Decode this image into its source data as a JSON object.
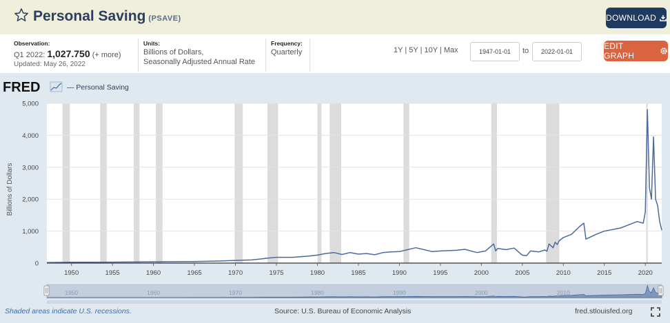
{
  "header": {
    "title": "Personal Saving",
    "series_id": "(PSAVE)",
    "download_label": "DOWNLOAD"
  },
  "meta": {
    "observation_label": "Observation:",
    "observation_period": "Q1 2022:",
    "observation_value": "1,027.750",
    "observation_more": "(+ more)",
    "updated": "Updated: May 26, 2022",
    "units_label": "Units:",
    "units_line1": "Billions of Dollars,",
    "units_line2": "Seasonally Adjusted Annual Rate",
    "frequency_label": "Frequency:",
    "frequency_value": "Quarterly"
  },
  "controls": {
    "range_1y": "1Y",
    "range_5y": "5Y",
    "range_10y": "10Y",
    "range_max": "Max",
    "start_date": "1947-01-01",
    "to_label": "to",
    "end_date": "2022-01-01",
    "edit_label": "EDIT GRAPH"
  },
  "brand": {
    "logo": "FRED",
    "legend_label": "— Personal Saving"
  },
  "footer": {
    "recessions_note": "Shaded areas indicate U.S. recessions.",
    "source": "Source: U.S. Bureau of Economic Analysis",
    "site": "fred.stlouisfed.org"
  },
  "colors": {
    "line": "#4b6a9b",
    "recession": "#dcdcdc",
    "background": "#e1e9f0",
    "download": "#1f3a5f",
    "edit": "#d9643f"
  },
  "chart_data": {
    "type": "line",
    "title": "Personal Saving",
    "ylabel": "Billions of Dollars",
    "xlim": [
      1947.0,
      2022.0
    ],
    "ylim": [
      0,
      5000
    ],
    "y_ticks": [
      "0",
      "1,000",
      "2,000",
      "3,000",
      "4,000",
      "5,000"
    ],
    "y_tick_values": [
      0,
      1000,
      2000,
      3000,
      4000,
      5000
    ],
    "x_ticks": [
      "1950",
      "1955",
      "1960",
      "1965",
      "1970",
      "1975",
      "1980",
      "1985",
      "1990",
      "1995",
      "2000",
      "2005",
      "2010",
      "2015",
      "2020"
    ],
    "x_tick_values": [
      1950,
      1955,
      1960,
      1965,
      1970,
      1975,
      1980,
      1985,
      1990,
      1995,
      2000,
      2005,
      2010,
      2015,
      2020
    ],
    "navigator_ticks": [
      "1950",
      "1960",
      "1970",
      "1980",
      "1990",
      "2000",
      "2010"
    ],
    "navigator_tick_values": [
      1950,
      1960,
      1970,
      1980,
      1990,
      2000,
      2010
    ],
    "grid": true,
    "recessions": [
      [
        1948.9,
        1949.8
      ],
      [
        1953.5,
        1954.3
      ],
      [
        1957.6,
        1958.3
      ],
      [
        1960.3,
        1961.1
      ],
      [
        1969.9,
        1970.9
      ],
      [
        1973.9,
        1975.2
      ],
      [
        1980.0,
        1980.5
      ],
      [
        1981.5,
        1982.9
      ],
      [
        1990.5,
        1991.2
      ],
      [
        2001.2,
        2001.9
      ],
      [
        2007.9,
        2009.5
      ],
      [
        2020.1,
        2020.3
      ]
    ],
    "series": [
      {
        "name": "Personal Saving",
        "x": [
          1947.0,
          1950.0,
          1955.0,
          1960.0,
          1965.0,
          1968.0,
          1970.0,
          1972.0,
          1974.0,
          1975.0,
          1977.0,
          1979.0,
          1980.0,
          1981.0,
          1982.0,
          1983.0,
          1984.0,
          1985.0,
          1986.0,
          1987.0,
          1988.0,
          1989.0,
          1990.0,
          1991.0,
          1992.0,
          1993.0,
          1994.0,
          1995.0,
          1996.0,
          1997.0,
          1998.0,
          1999.0,
          1999.5,
          2000.5,
          2001.5,
          2001.75,
          2002.0,
          2003.0,
          2004.0,
          2004.75,
          2005.0,
          2005.5,
          2006.0,
          2007.0,
          2007.75,
          2008.0,
          2008.25,
          2008.75,
          2009.0,
          2009.25,
          2009.5,
          2010.0,
          2011.0,
          2012.0,
          2012.5,
          2012.75,
          2013.0,
          2014.0,
          2015.0,
          2016.0,
          2017.0,
          2018.0,
          2019.0,
          2019.75,
          2020.0,
          2020.25,
          2020.5,
          2020.75,
          2021.0,
          2021.25,
          2021.5,
          2021.75,
          2022.0
        ],
        "y": [
          20,
          25,
          30,
          40,
          50,
          65,
          85,
          100,
          155,
          180,
          180,
          220,
          250,
          300,
          330,
          270,
          330,
          280,
          300,
          260,
          330,
          350,
          360,
          420,
          480,
          420,
          360,
          380,
          390,
          400,
          430,
          360,
          330,
          380,
          600,
          380,
          460,
          420,
          470,
          300,
          250,
          230,
          380,
          350,
          410,
          370,
          600,
          480,
          650,
          580,
          700,
          800,
          900,
          1150,
          1250,
          750,
          780,
          900,
          1000,
          1050,
          1100,
          1200,
          1300,
          1250,
          1600,
          4800,
          2350,
          2000,
          3950,
          2000,
          1800,
          1300,
          1028
        ]
      }
    ]
  }
}
